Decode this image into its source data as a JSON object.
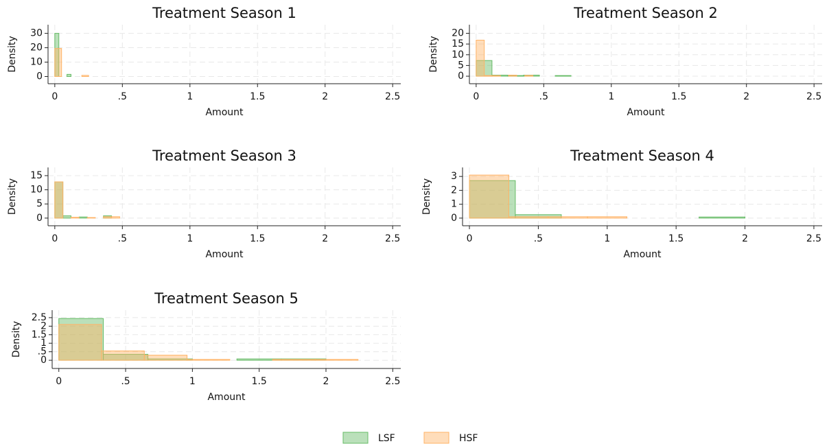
{
  "chart_data": [
    {
      "type": "histogram",
      "title": "Treatment Season 1",
      "x_label": "Amount",
      "y_label": "Density",
      "xlim": [
        -0.05,
        2.56
      ],
      "ylim": [
        -5,
        36
      ],
      "grid": true,
      "xticks": [
        0,
        {
          "value": 0.5,
          "label": ".5"
        },
        1,
        1.5,
        2,
        2.5
      ],
      "yticks": [
        0,
        10,
        20,
        30
      ],
      "series": [
        {
          "name": "LSF",
          "color": "#66bb66",
          "bins": [
            0,
            0.03,
            0.06,
            0.09,
            0.12
          ],
          "values": [
            30,
            0,
            0,
            1.5
          ]
        },
        {
          "name": "HSF",
          "color": "#ffb366",
          "bins": [
            0,
            0.05,
            0.1,
            0.15,
            0.2,
            0.25
          ],
          "values": [
            19.5,
            0,
            0,
            0,
            0.8
          ]
        }
      ]
    },
    {
      "type": "histogram",
      "title": "Treatment Season 2",
      "x_label": "Amount",
      "y_label": "Density",
      "xlim": [
        -0.05,
        2.56
      ],
      "ylim": [
        -3.5,
        24
      ],
      "grid": true,
      "xticks": [
        0,
        {
          "value": 0.5,
          "label": ".5"
        },
        1,
        1.5,
        2,
        2.5
      ],
      "yticks": [
        0,
        5,
        10,
        15,
        20
      ],
      "series": [
        {
          "name": "LSF",
          "color": "#66bb66",
          "bins": [
            0,
            0.117,
            0.234,
            0.351,
            0.468,
            0.585,
            0.702
          ],
          "values": [
            7.3,
            0.5,
            0.3,
            0.5,
            0,
            0.3
          ]
        },
        {
          "name": "HSF",
          "color": "#ffb366",
          "bins": [
            0,
            0.06,
            0.12,
            0.18,
            0.24,
            0.3,
            0.36,
            0.42
          ],
          "values": [
            16.8,
            0.3,
            0.3,
            0,
            0.5,
            0,
            0.4
          ]
        }
      ]
    },
    {
      "type": "histogram",
      "title": "Treatment Season 3",
      "x_label": "Amount",
      "y_label": "Density",
      "xlim": [
        -0.05,
        2.56
      ],
      "ylim": [
        -2.7,
        17.9
      ],
      "grid": true,
      "xticks": [
        0,
        {
          "value": 0.5,
          "label": ".5"
        },
        1,
        1.5,
        2,
        2.5
      ],
      "yticks": [
        0,
        5,
        10,
        15
      ],
      "series": [
        {
          "name": "LSF",
          "color": "#66bb66",
          "bins": [
            0,
            0.06,
            0.12,
            0.18,
            0.24,
            0.3,
            0.36,
            0.42
          ],
          "values": [
            12.8,
            0.8,
            0,
            0.4,
            0,
            0,
            0.8
          ]
        },
        {
          "name": "HSF",
          "color": "#ffb366",
          "bins": [
            0,
            0.06,
            0.12,
            0.18,
            0.24,
            0.3,
            0.36,
            0.42,
            0.48
          ],
          "values": [
            12.8,
            0,
            0.3,
            0,
            0.2,
            0,
            0.5,
            0.5
          ]
        }
      ]
    },
    {
      "type": "histogram",
      "title": "Treatment Season 4",
      "x_label": "Amount",
      "y_label": "Density",
      "xlim": [
        -0.05,
        2.56
      ],
      "ylim": [
        -0.55,
        3.65
      ],
      "grid": true,
      "xticks": [
        0,
        {
          "value": 0.5,
          "label": ".5"
        },
        1,
        1.5,
        2,
        2.5
      ],
      "yticks": [
        0,
        1,
        2,
        3
      ],
      "series": [
        {
          "name": "LSF",
          "color": "#66bb66",
          "bins": [
            0,
            0.333,
            0.667,
            1,
            1.333,
            1.667,
            2
          ],
          "values": [
            2.7,
            0.25,
            0,
            0,
            0,
            0.08
          ]
        },
        {
          "name": "HSF",
          "color": "#ffb366",
          "bins": [
            0,
            0.286,
            0.571,
            0.857,
            1.143
          ],
          "values": [
            3.1,
            0.1,
            0.1,
            0.1
          ]
        }
      ]
    },
    {
      "type": "histogram",
      "title": "Treatment Season 5",
      "x_label": "Amount",
      "y_label": "Density",
      "xlim": [
        -0.05,
        2.56
      ],
      "ylim": [
        -0.48,
        2.94
      ],
      "grid": true,
      "xticks": [
        0,
        {
          "value": 0.5,
          "label": ".5"
        },
        1,
        1.5,
        2,
        2.5
      ],
      "yticks": [
        0,
        {
          "value": 0.5,
          "label": ".5"
        },
        1,
        1.5,
        2,
        2.5
      ],
      "series": [
        {
          "name": "LSF",
          "color": "#66bb66",
          "bins": [
            0,
            0.333,
            0.667,
            1,
            1.333,
            1.667,
            2
          ],
          "values": [
            2.45,
            0.35,
            0.08,
            0,
            0.08,
            0.08
          ]
        },
        {
          "name": "HSF",
          "color": "#ffb366",
          "bins": [
            0,
            0.32,
            0.64,
            0.96,
            1.28,
            1.6,
            1.92,
            2.24
          ],
          "values": [
            2.1,
            0.55,
            0.3,
            0.05,
            0,
            0.05,
            0.05
          ]
        }
      ]
    }
  ]
}
